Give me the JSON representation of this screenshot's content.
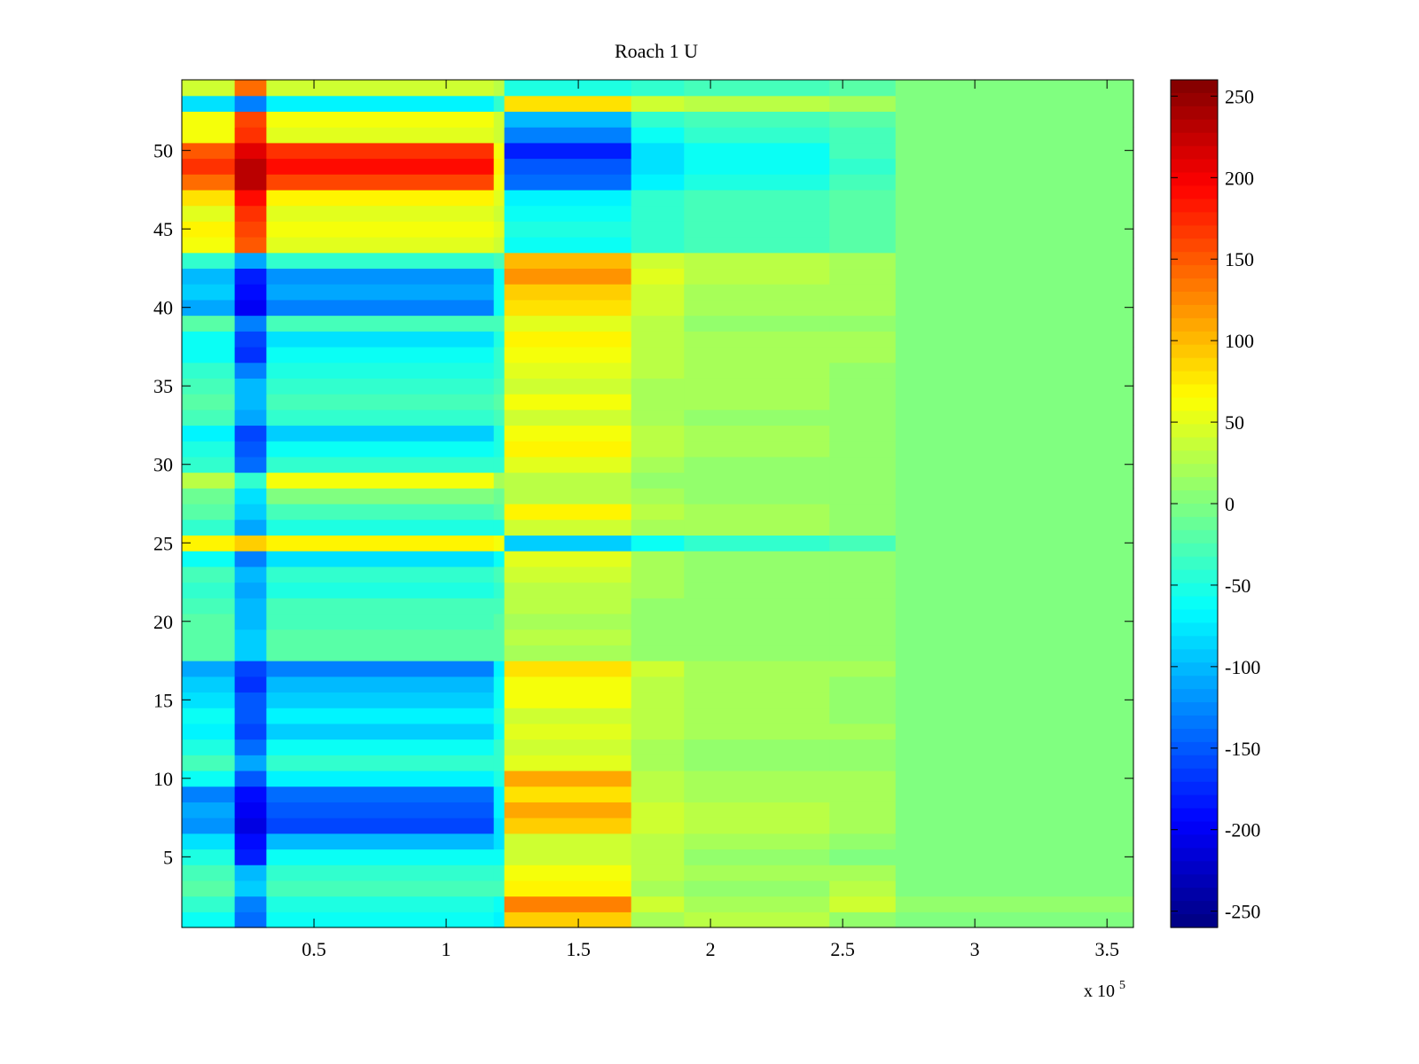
{
  "chart_data": {
    "type": "heatmap",
    "title": "Roach 1 U",
    "xlabel": "",
    "ylabel": "",
    "x_exponent_label": "x 10",
    "x_exponent_sup": "5",
    "xlim": [
      0,
      3.6
    ],
    "ylim": [
      0.5,
      54.5
    ],
    "x_ticks": [
      0.5,
      1,
      1.5,
      2,
      2.5,
      3,
      3.5
    ],
    "x_tick_labels": [
      "0.5",
      "1",
      "1.5",
      "2",
      "2.5",
      "3",
      "3.5"
    ],
    "y_ticks": [
      5,
      10,
      15,
      20,
      25,
      30,
      35,
      40,
      45,
      50
    ],
    "y_tick_labels": [
      "5",
      "10",
      "15",
      "20",
      "25",
      "30",
      "35",
      "40",
      "45",
      "50"
    ],
    "colormap": "jet",
    "clim": [
      -260,
      260
    ],
    "colorbar_ticks": [
      250,
      200,
      150,
      100,
      50,
      0,
      -50,
      -100,
      -150,
      -200,
      -250
    ],
    "colorbar_tick_labels": [
      "250",
      "200",
      "150",
      "100",
      "50",
      "0",
      "-50",
      "-100",
      "-150",
      "-200",
      "-250"
    ],
    "x_segments": [
      0.2,
      0.32,
      1.18,
      1.22,
      1.7,
      1.9,
      2.45,
      2.7,
      3.6
    ],
    "rows": [
      1,
      2,
      3,
      4,
      5,
      6,
      7,
      8,
      9,
      10,
      11,
      12,
      13,
      14,
      15,
      16,
      17,
      18,
      19,
      20,
      21,
      22,
      23,
      24,
      25,
      26,
      27,
      28,
      29,
      30,
      31,
      32,
      33,
      34,
      35,
      36,
      37,
      38,
      39,
      40,
      41,
      42,
      43,
      44,
      45,
      46,
      47,
      48,
      49,
      50,
      51,
      52,
      53,
      54
    ],
    "values": [
      [
        -60,
        -140,
        -60,
        -70,
        90,
        20,
        30,
        10,
        0
      ],
      [
        -40,
        -130,
        -50,
        -60,
        130,
        40,
        20,
        40,
        10
      ],
      [
        -20,
        -90,
        -30,
        -30,
        70,
        20,
        10,
        30,
        0
      ],
      [
        -30,
        -100,
        -40,
        -40,
        60,
        30,
        20,
        20,
        0
      ],
      [
        -50,
        -180,
        -60,
        -60,
        40,
        30,
        10,
        0,
        0
      ],
      [
        -80,
        -190,
        -100,
        -80,
        40,
        30,
        20,
        10,
        0
      ],
      [
        -120,
        -210,
        -160,
        -80,
        90,
        40,
        30,
        20,
        0
      ],
      [
        -110,
        -200,
        -150,
        -70,
        110,
        40,
        30,
        20,
        0
      ],
      [
        -130,
        -190,
        -140,
        -70,
        80,
        30,
        20,
        20,
        0
      ],
      [
        -60,
        -150,
        -70,
        -50,
        110,
        30,
        20,
        20,
        0
      ],
      [
        -30,
        -110,
        -40,
        -40,
        50,
        20,
        10,
        10,
        0
      ],
      [
        -50,
        -140,
        -60,
        -40,
        40,
        20,
        10,
        10,
        0
      ],
      [
        -70,
        -160,
        -90,
        -60,
        50,
        30,
        20,
        20,
        0
      ],
      [
        -60,
        -150,
        -70,
        -50,
        40,
        30,
        20,
        10,
        0
      ],
      [
        -80,
        -150,
        -90,
        -60,
        60,
        30,
        20,
        10,
        0
      ],
      [
        -90,
        -170,
        -100,
        -60,
        60,
        30,
        20,
        10,
        0
      ],
      [
        -110,
        -160,
        -130,
        -70,
        80,
        40,
        20,
        20,
        0
      ],
      [
        -20,
        -90,
        -20,
        -20,
        20,
        10,
        10,
        10,
        0
      ],
      [
        -20,
        -90,
        -20,
        -20,
        30,
        10,
        10,
        10,
        0
      ],
      [
        -20,
        -100,
        -30,
        -20,
        20,
        10,
        10,
        10,
        0
      ],
      [
        -30,
        -100,
        -30,
        -30,
        30,
        10,
        10,
        10,
        0
      ],
      [
        -40,
        -110,
        -50,
        -40,
        30,
        20,
        10,
        10,
        0
      ],
      [
        -30,
        -100,
        -40,
        -30,
        40,
        20,
        10,
        10,
        0
      ],
      [
        -60,
        -130,
        -80,
        -60,
        50,
        20,
        10,
        10,
        0
      ],
      [
        70,
        90,
        70,
        60,
        -90,
        -60,
        -40,
        -30,
        0
      ],
      [
        -40,
        -110,
        -50,
        -50,
        40,
        20,
        20,
        10,
        0
      ],
      [
        -20,
        -90,
        -30,
        -20,
        70,
        30,
        20,
        10,
        0
      ],
      [
        -10,
        -80,
        0,
        -10,
        30,
        20,
        10,
        10,
        0
      ],
      [
        30,
        -40,
        60,
        20,
        30,
        10,
        10,
        10,
        0
      ],
      [
        -40,
        -140,
        -40,
        -40,
        50,
        20,
        10,
        10,
        0
      ],
      [
        -50,
        -150,
        -60,
        -50,
        70,
        30,
        20,
        10,
        0
      ],
      [
        -70,
        -160,
        -90,
        -50,
        60,
        30,
        20,
        10,
        0
      ],
      [
        -30,
        -110,
        -40,
        -30,
        40,
        20,
        10,
        10,
        0
      ],
      [
        -20,
        -100,
        -30,
        -20,
        60,
        20,
        20,
        10,
        0
      ],
      [
        -30,
        -100,
        -40,
        -30,
        40,
        20,
        20,
        10,
        0
      ],
      [
        -40,
        -130,
        -50,
        -40,
        50,
        30,
        20,
        10,
        0
      ],
      [
        -60,
        -170,
        -60,
        -40,
        60,
        30,
        20,
        20,
        0
      ],
      [
        -60,
        -160,
        -80,
        -50,
        70,
        30,
        20,
        20,
        0
      ],
      [
        -20,
        -130,
        -30,
        -30,
        50,
        30,
        10,
        10,
        0
      ],
      [
        -110,
        -200,
        -130,
        -60,
        80,
        40,
        20,
        20,
        0
      ],
      [
        -90,
        -190,
        -110,
        -60,
        90,
        40,
        20,
        20,
        0
      ],
      [
        -100,
        -180,
        -120,
        -60,
        120,
        50,
        30,
        20,
        0
      ],
      [
        -40,
        -110,
        -40,
        -30,
        100,
        40,
        30,
        20,
        0
      ],
      [
        60,
        150,
        50,
        40,
        -60,
        -40,
        -30,
        -20,
        0
      ],
      [
        70,
        160,
        60,
        50,
        -50,
        -40,
        -30,
        -20,
        0
      ],
      [
        50,
        170,
        50,
        40,
        -60,
        -40,
        -30,
        -20,
        0
      ],
      [
        80,
        190,
        70,
        50,
        -70,
        -40,
        -30,
        -20,
        0
      ],
      [
        140,
        230,
        160,
        60,
        -140,
        -70,
        -50,
        -30,
        0
      ],
      [
        170,
        230,
        190,
        70,
        -150,
        -80,
        -60,
        -40,
        0
      ],
      [
        150,
        210,
        170,
        60,
        -180,
        -80,
        -60,
        -30,
        0
      ],
      [
        60,
        170,
        50,
        40,
        -130,
        -60,
        -40,
        -30,
        0
      ],
      [
        60,
        160,
        60,
        40,
        -100,
        -40,
        -30,
        -20,
        0
      ],
      [
        -80,
        -130,
        -70,
        -40,
        80,
        40,
        30,
        20,
        0
      ],
      [
        40,
        140,
        40,
        30,
        -50,
        -40,
        -30,
        -20,
        0
      ]
    ]
  }
}
